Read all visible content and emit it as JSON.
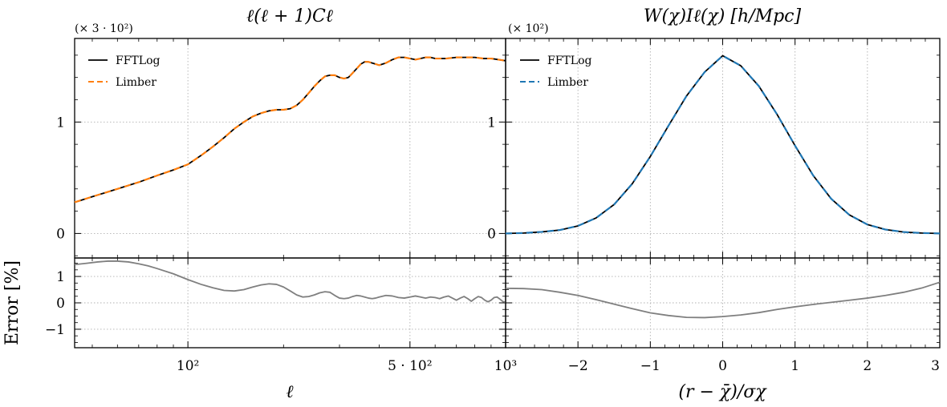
{
  "chart_data": [
    {
      "type": "line",
      "panel": "top-left",
      "title": "ℓ(ℓ + 1)Cℓ",
      "multiplier": "(× 3 · 10²)",
      "xscale": "log",
      "xlim": [
        44,
        1000
      ],
      "ylim": [
        -0.22,
        1.75
      ],
      "yticks": [
        {
          "v": 0,
          "label": "0"
        },
        {
          "v": 1,
          "label": "1"
        }
      ],
      "grid": true,
      "legend_position": "top-left",
      "series": [
        {
          "name": "FFTLog",
          "color": "#000000",
          "dash": "solid",
          "x": [
            44,
            50,
            60,
            70,
            80,
            90,
            100,
            110,
            120,
            130,
            140,
            150,
            160,
            170,
            180,
            190,
            200,
            210,
            220,
            230,
            240,
            250,
            260,
            270,
            280,
            290,
            300,
            310,
            320,
            330,
            340,
            350,
            360,
            370,
            380,
            390,
            400,
            420,
            440,
            460,
            480,
            500,
            520,
            540,
            560,
            580,
            600,
            650,
            700,
            750,
            800,
            850,
            900,
            950,
            1000
          ],
          "y": [
            0.28,
            0.33,
            0.4,
            0.46,
            0.52,
            0.57,
            0.62,
            0.7,
            0.78,
            0.86,
            0.94,
            1.0,
            1.05,
            1.08,
            1.1,
            1.11,
            1.11,
            1.12,
            1.15,
            1.2,
            1.26,
            1.32,
            1.37,
            1.41,
            1.42,
            1.42,
            1.4,
            1.39,
            1.4,
            1.44,
            1.48,
            1.52,
            1.54,
            1.54,
            1.53,
            1.52,
            1.51,
            1.53,
            1.56,
            1.58,
            1.58,
            1.57,
            1.56,
            1.57,
            1.58,
            1.58,
            1.57,
            1.57,
            1.58,
            1.58,
            1.58,
            1.57,
            1.57,
            1.56,
            1.55
          ]
        },
        {
          "name": "Limber",
          "color": "#ff7f0e",
          "dash": "dashed",
          "x": [
            44,
            50,
            60,
            70,
            80,
            90,
            100,
            110,
            120,
            130,
            140,
            150,
            160,
            170,
            180,
            190,
            200,
            210,
            220,
            230,
            240,
            250,
            260,
            270,
            280,
            290,
            300,
            310,
            320,
            330,
            340,
            350,
            360,
            370,
            380,
            390,
            400,
            420,
            440,
            460,
            480,
            500,
            520,
            540,
            560,
            580,
            600,
            650,
            700,
            750,
            800,
            850,
            900,
            950,
            1000
          ],
          "y": [
            0.28,
            0.33,
            0.4,
            0.46,
            0.52,
            0.57,
            0.62,
            0.7,
            0.78,
            0.86,
            0.94,
            1.0,
            1.05,
            1.08,
            1.1,
            1.11,
            1.11,
            1.12,
            1.15,
            1.2,
            1.26,
            1.32,
            1.37,
            1.41,
            1.42,
            1.42,
            1.4,
            1.39,
            1.4,
            1.44,
            1.48,
            1.52,
            1.54,
            1.54,
            1.53,
            1.52,
            1.51,
            1.53,
            1.56,
            1.58,
            1.58,
            1.57,
            1.56,
            1.57,
            1.58,
            1.58,
            1.57,
            1.57,
            1.58,
            1.58,
            1.58,
            1.57,
            1.57,
            1.56,
            1.55
          ]
        }
      ]
    },
    {
      "type": "line",
      "panel": "top-right",
      "title": "W(χ)Iℓ(χ) [h/Mpc]",
      "multiplier": "(× 10²)",
      "xscale": "linear",
      "xlim": [
        -3,
        3
      ],
      "ylim": [
        -0.22,
        1.75
      ],
      "yticks": [
        {
          "v": 0,
          "label": "0"
        },
        {
          "v": 1,
          "label": "1"
        }
      ],
      "grid": true,
      "legend_position": "top-left",
      "series": [
        {
          "name": "FFTLog",
          "color": "#000000",
          "dash": "solid",
          "x": [
            -3,
            -2.75,
            -2.5,
            -2.25,
            -2,
            -1.75,
            -1.5,
            -1.25,
            -1,
            -0.75,
            -0.5,
            -0.25,
            0,
            0.25,
            0.5,
            0.75,
            1,
            1.25,
            1.5,
            1.75,
            2,
            2.25,
            2.5,
            2.75,
            3
          ],
          "y": [
            0.0,
            0.004,
            0.014,
            0.031,
            0.068,
            0.139,
            0.26,
            0.446,
            0.691,
            0.966,
            1.234,
            1.448,
            1.595,
            1.505,
            1.322,
            1.07,
            0.788,
            0.521,
            0.311,
            0.167,
            0.08,
            0.035,
            0.013,
            0.004,
            0.0
          ]
        },
        {
          "name": "Limber",
          "color": "#1f77b4",
          "dash": "dashed",
          "x": [
            -3,
            -2.75,
            -2.5,
            -2.25,
            -2,
            -1.75,
            -1.5,
            -1.25,
            -1,
            -0.75,
            -0.5,
            -0.25,
            0,
            0.25,
            0.5,
            0.75,
            1,
            1.25,
            1.5,
            1.75,
            2,
            2.25,
            2.5,
            2.75,
            3
          ],
          "y": [
            0.0,
            0.004,
            0.014,
            0.031,
            0.068,
            0.139,
            0.26,
            0.446,
            0.691,
            0.966,
            1.234,
            1.448,
            1.595,
            1.505,
            1.322,
            1.07,
            0.788,
            0.521,
            0.311,
            0.167,
            0.08,
            0.035,
            0.013,
            0.004,
            0.0
          ]
        }
      ]
    },
    {
      "type": "line",
      "panel": "bottom-left",
      "ylabel": "Error [%]",
      "xlabel": "ℓ",
      "xscale": "log",
      "xlim": [
        44,
        1000
      ],
      "ylim": [
        -1.7,
        1.7
      ],
      "yticks": [
        {
          "v": 1,
          "label": "1"
        },
        {
          "v": 0,
          "label": "0"
        },
        {
          "v": -1,
          "label": "−1"
        }
      ],
      "xticks": [
        {
          "v": 100,
          "label": "10²",
          "align": "middle"
        },
        {
          "v": 500,
          "label": "5 · 10²",
          "align": "middle"
        },
        {
          "v": 1000,
          "label": "10³",
          "align": "middle"
        }
      ],
      "grid": true,
      "series": [
        {
          "name": "",
          "color": "#7f7f7f",
          "dash": "solid",
          "x": [
            44,
            48,
            52,
            56,
            60,
            65,
            70,
            75,
            80,
            90,
            100,
            110,
            120,
            130,
            140,
            150,
            160,
            170,
            180,
            190,
            200,
            210,
            220,
            230,
            240,
            250,
            260,
            270,
            280,
            290,
            300,
            310,
            320,
            330,
            340,
            350,
            360,
            370,
            380,
            390,
            400,
            420,
            440,
            460,
            480,
            500,
            520,
            540,
            560,
            580,
            600,
            620,
            640,
            660,
            680,
            700,
            720,
            740,
            760,
            780,
            800,
            820,
            840,
            860,
            880,
            900,
            920,
            940,
            960,
            980,
            1000
          ],
          "y": [
            1.45,
            1.5,
            1.55,
            1.58,
            1.58,
            1.55,
            1.48,
            1.4,
            1.3,
            1.1,
            0.88,
            0.7,
            0.57,
            0.47,
            0.45,
            0.5,
            0.6,
            0.68,
            0.72,
            0.7,
            0.6,
            0.45,
            0.3,
            0.22,
            0.24,
            0.3,
            0.38,
            0.42,
            0.4,
            0.28,
            0.18,
            0.16,
            0.18,
            0.24,
            0.28,
            0.26,
            0.22,
            0.18,
            0.16,
            0.18,
            0.22,
            0.28,
            0.26,
            0.2,
            0.18,
            0.22,
            0.26,
            0.22,
            0.18,
            0.22,
            0.2,
            0.16,
            0.22,
            0.26,
            0.18,
            0.1,
            0.18,
            0.24,
            0.16,
            0.06,
            0.16,
            0.24,
            0.2,
            0.1,
            0.04,
            0.1,
            0.2,
            0.22,
            0.14,
            0.05,
            0.02
          ]
        }
      ]
    },
    {
      "type": "line",
      "panel": "bottom-right",
      "xlabel": "(r − χ̄)/σχ",
      "xscale": "linear",
      "xlim": [
        -3,
        3
      ],
      "ylim": [
        -1.7,
        1.7
      ],
      "xticks": [
        {
          "v": -2,
          "label": "−2"
        },
        {
          "v": -1,
          "label": "−1"
        },
        {
          "v": 0,
          "label": "0"
        },
        {
          "v": 1,
          "label": "1"
        },
        {
          "v": 2,
          "label": "2"
        },
        {
          "v": 3,
          "label": "3",
          "align": "end"
        }
      ],
      "grid": true,
      "series": [
        {
          "name": "",
          "color": "#7f7f7f",
          "dash": "solid",
          "x": [
            -3,
            -2.75,
            -2.5,
            -2.25,
            -2,
            -1.75,
            -1.5,
            -1.25,
            -1,
            -0.75,
            -0.5,
            -0.25,
            0,
            0.25,
            0.5,
            0.75,
            1,
            1.25,
            1.5,
            1.75,
            2,
            2.25,
            2.5,
            2.75,
            3
          ],
          "y": [
            0.55,
            0.54,
            0.5,
            0.4,
            0.28,
            0.12,
            -0.05,
            -0.22,
            -0.38,
            -0.48,
            -0.55,
            -0.56,
            -0.52,
            -0.46,
            -0.37,
            -0.25,
            -0.15,
            -0.06,
            0.02,
            0.1,
            0.18,
            0.28,
            0.4,
            0.56,
            0.78
          ]
        }
      ]
    }
  ]
}
